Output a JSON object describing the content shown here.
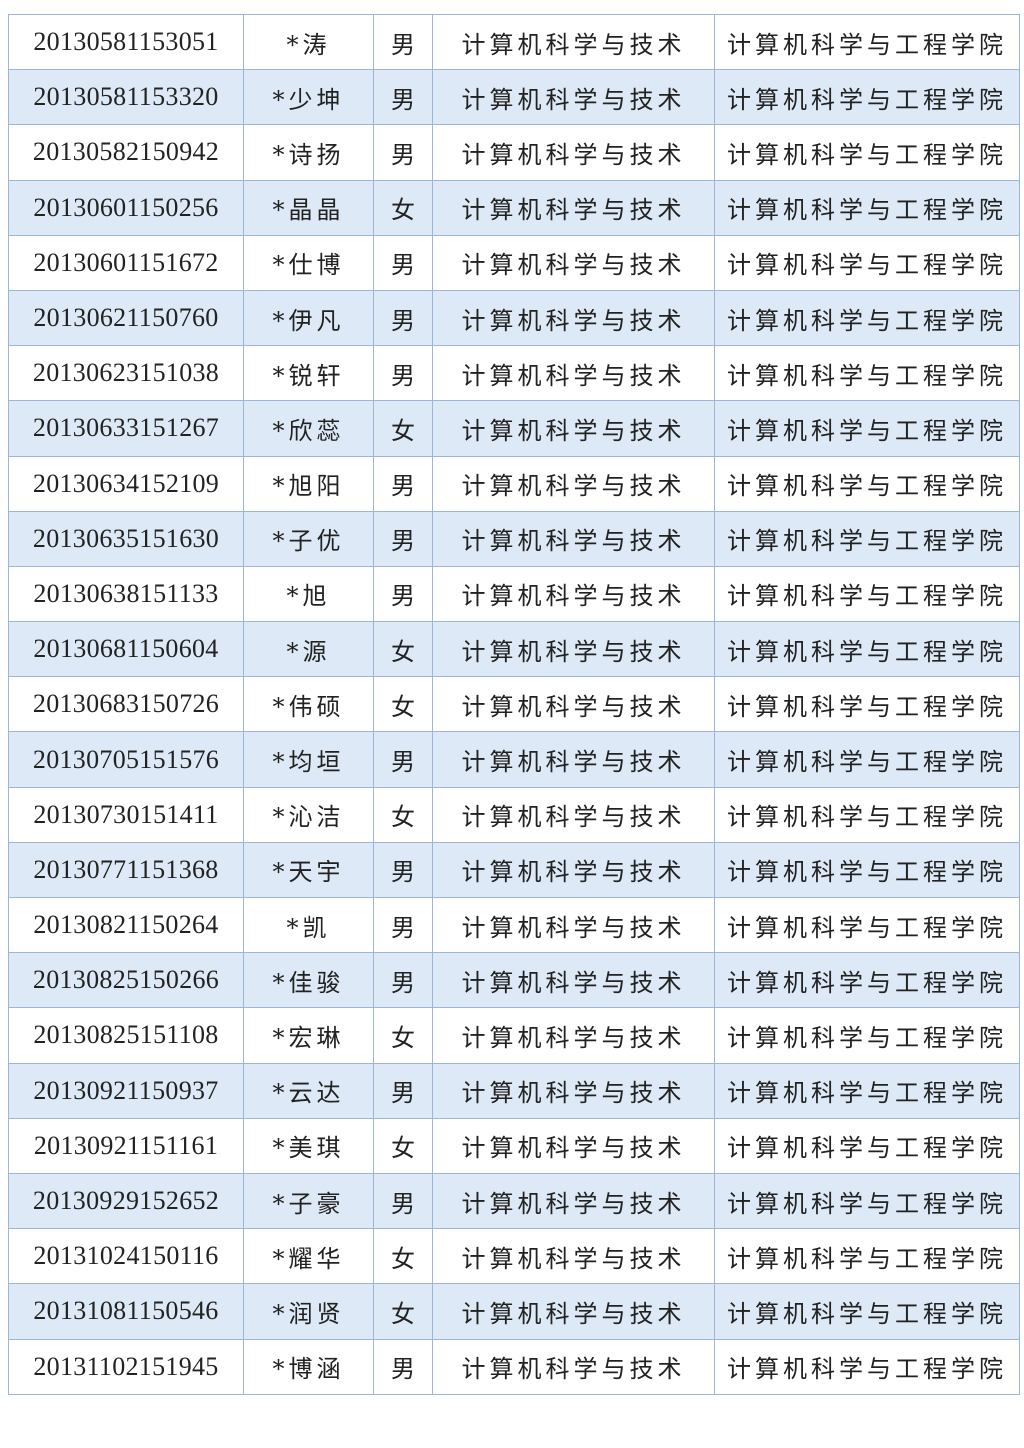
{
  "colors": {
    "stripe": "#dde9f6",
    "border": "#9db6d6",
    "text": "#222222"
  },
  "rows": [
    {
      "id": "20130581153051",
      "name": "*涛",
      "gender": "男",
      "major": "计算机科学与技术",
      "college": "计算机科学与工程学院"
    },
    {
      "id": "20130581153320",
      "name": "*少坤",
      "gender": "男",
      "major": "计算机科学与技术",
      "college": "计算机科学与工程学院"
    },
    {
      "id": "20130582150942",
      "name": "*诗扬",
      "gender": "男",
      "major": "计算机科学与技术",
      "college": "计算机科学与工程学院"
    },
    {
      "id": "20130601150256",
      "name": "*晶晶",
      "gender": "女",
      "major": "计算机科学与技术",
      "college": "计算机科学与工程学院"
    },
    {
      "id": "20130601151672",
      "name": "*仕博",
      "gender": "男",
      "major": "计算机科学与技术",
      "college": "计算机科学与工程学院"
    },
    {
      "id": "20130621150760",
      "name": "*伊凡",
      "gender": "男",
      "major": "计算机科学与技术",
      "college": "计算机科学与工程学院"
    },
    {
      "id": "20130623151038",
      "name": "*锐轩",
      "gender": "男",
      "major": "计算机科学与技术",
      "college": "计算机科学与工程学院"
    },
    {
      "id": "20130633151267",
      "name": "*欣蕊",
      "gender": "女",
      "major": "计算机科学与技术",
      "college": "计算机科学与工程学院"
    },
    {
      "id": "20130634152109",
      "name": "*旭阳",
      "gender": "男",
      "major": "计算机科学与技术",
      "college": "计算机科学与工程学院"
    },
    {
      "id": "20130635151630",
      "name": "*子优",
      "gender": "男",
      "major": "计算机科学与技术",
      "college": "计算机科学与工程学院"
    },
    {
      "id": "20130638151133",
      "name": "*旭",
      "gender": "男",
      "major": "计算机科学与技术",
      "college": "计算机科学与工程学院"
    },
    {
      "id": "20130681150604",
      "name": "*源",
      "gender": "女",
      "major": "计算机科学与技术",
      "college": "计算机科学与工程学院"
    },
    {
      "id": "20130683150726",
      "name": "*伟硕",
      "gender": "女",
      "major": "计算机科学与技术",
      "college": "计算机科学与工程学院"
    },
    {
      "id": "20130705151576",
      "name": "*均垣",
      "gender": "男",
      "major": "计算机科学与技术",
      "college": "计算机科学与工程学院"
    },
    {
      "id": "20130730151411",
      "name": "*沁洁",
      "gender": "女",
      "major": "计算机科学与技术",
      "college": "计算机科学与工程学院"
    },
    {
      "id": "20130771151368",
      "name": "*天宇",
      "gender": "男",
      "major": "计算机科学与技术",
      "college": "计算机科学与工程学院"
    },
    {
      "id": "20130821150264",
      "name": "*凯",
      "gender": "男",
      "major": "计算机科学与技术",
      "college": "计算机科学与工程学院"
    },
    {
      "id": "20130825150266",
      "name": "*佳骏",
      "gender": "男",
      "major": "计算机科学与技术",
      "college": "计算机科学与工程学院"
    },
    {
      "id": "20130825151108",
      "name": "*宏琳",
      "gender": "女",
      "major": "计算机科学与技术",
      "college": "计算机科学与工程学院"
    },
    {
      "id": "20130921150937",
      "name": "*云达",
      "gender": "男",
      "major": "计算机科学与技术",
      "college": "计算机科学与工程学院"
    },
    {
      "id": "20130921151161",
      "name": "*美琪",
      "gender": "女",
      "major": "计算机科学与技术",
      "college": "计算机科学与工程学院"
    },
    {
      "id": "20130929152652",
      "name": "*子豪",
      "gender": "男",
      "major": "计算机科学与技术",
      "college": "计算机科学与工程学院"
    },
    {
      "id": "20131024150116",
      "name": "*耀华",
      "gender": "女",
      "major": "计算机科学与技术",
      "college": "计算机科学与工程学院"
    },
    {
      "id": "20131081150546",
      "name": "*润贤",
      "gender": "女",
      "major": "计算机科学与技术",
      "college": "计算机科学与工程学院"
    },
    {
      "id": "20131102151945",
      "name": "*博涵",
      "gender": "男",
      "major": "计算机科学与技术",
      "college": "计算机科学与工程学院"
    }
  ]
}
